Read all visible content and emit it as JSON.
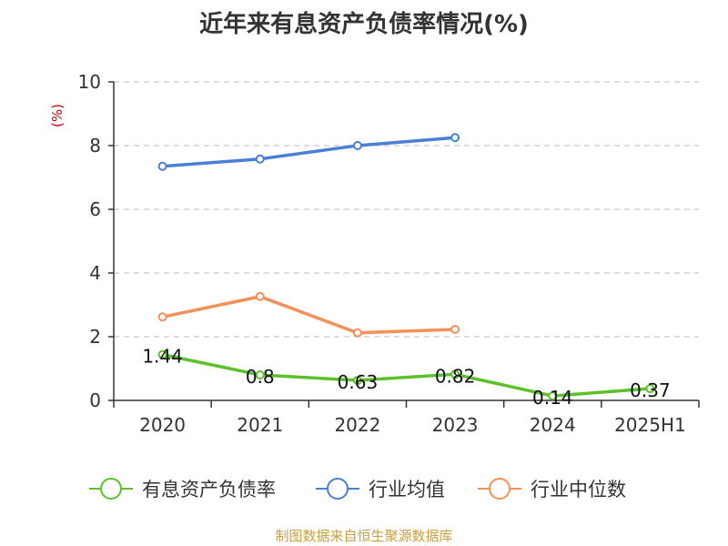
{
  "title": "近年来有息资产负债率情况(%)",
  "source": "制图数据来自恒生聚源数据库",
  "chart_data": {
    "type": "line",
    "unit_label": "(%)",
    "categories": [
      "2020",
      "2021",
      "2022",
      "2023",
      "2024",
      "2025H1"
    ],
    "ylim": [
      0,
      10
    ],
    "yticks": [
      0,
      2,
      4,
      6,
      8,
      10
    ],
    "grid": true,
    "legend_position": "bottom",
    "series": [
      {
        "name": "有息资产负债率",
        "color": "#5cc12b",
        "values": [
          1.44,
          0.8,
          0.63,
          0.82,
          0.14,
          0.37
        ],
        "labels": [
          "1.44",
          "0.8",
          "0.63",
          "0.82",
          "0.14",
          "0.37"
        ]
      },
      {
        "name": "行业均值",
        "color": "#4a7fd6",
        "values": [
          7.35,
          7.58,
          8.0,
          8.25,
          null,
          null
        ]
      },
      {
        "name": "行业中位数",
        "color": "#f4905a",
        "values": [
          2.62,
          3.26,
          2.12,
          2.23,
          null,
          null
        ]
      }
    ]
  }
}
